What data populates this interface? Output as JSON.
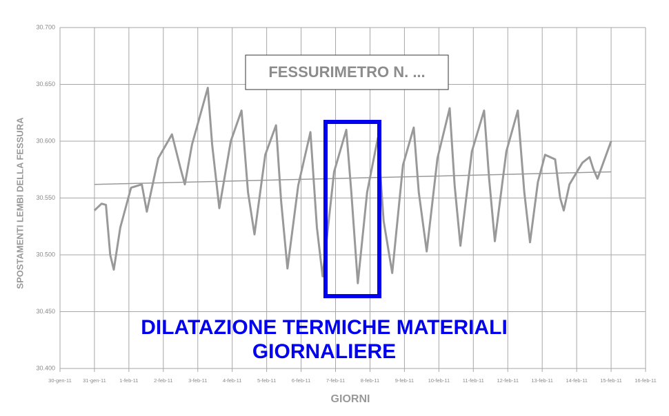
{
  "chart_data": {
    "type": "line",
    "title": "FESSURIMETRO N. ...",
    "annotation": [
      "DILATAZIONE TERMICHE MATERIALI",
      "GIORNALIERE"
    ],
    "y_label": "SPOSTAMENTI LEMBI DELLA FESSURA",
    "x_label": "GIORNI",
    "xlim": [
      "2011-01-30",
      "2011-02-16"
    ],
    "xticks": [
      {
        "value": "2011-01-30",
        "label": "30-gen-11"
      },
      {
        "value": "2011-01-31",
        "label": "31-gen-11"
      },
      {
        "value": "2011-02-01",
        "label": "1-feb-11"
      },
      {
        "value": "2011-02-02",
        "label": "2-feb-11"
      },
      {
        "value": "2011-02-03",
        "label": "3-feb-11"
      },
      {
        "value": "2011-02-04",
        "label": "4-feb-11"
      },
      {
        "value": "2011-02-05",
        "label": "5-feb-11"
      },
      {
        "value": "2011-02-06",
        "label": "6-feb-11"
      },
      {
        "value": "2011-02-07",
        "label": "7-feb-11"
      },
      {
        "value": "2011-02-08",
        "label": "8-feb-11"
      },
      {
        "value": "2011-02-09",
        "label": "9-feb-11"
      },
      {
        "value": "2011-02-10",
        "label": "10-feb-11"
      },
      {
        "value": "2011-02-11",
        "label": "11-feb-11"
      },
      {
        "value": "2011-02-12",
        "label": "12-feb-11"
      },
      {
        "value": "2011-02-13",
        "label": "13-feb-11"
      },
      {
        "value": "2011-02-14",
        "label": "14-feb-11"
      },
      {
        "value": "2011-02-15",
        "label": "15-feb-11"
      },
      {
        "value": "2011-02-16",
        "label": "16-feb-11"
      }
    ],
    "ylim": [
      30.4,
      30.7
    ],
    "yticks": [
      {
        "value": 30.4,
        "label": "30.400"
      },
      {
        "value": 30.45,
        "label": "30.450"
      },
      {
        "value": 30.5,
        "label": "30.500"
      },
      {
        "value": 30.55,
        "label": "30.550"
      },
      {
        "value": 30.6,
        "label": "30.600"
      },
      {
        "value": 30.65,
        "label": "30.650"
      },
      {
        "value": 30.7,
        "label": "30.700"
      }
    ],
    "grid": true,
    "series": [
      {
        "color": "#999999",
        "width": 3,
        "x": [
          "2011-01-31T00:00",
          "2011-01-31T05:00",
          "2011-01-31T08:00",
          "2011-01-31T11:00",
          "2011-01-31T13:30",
          "2011-01-31T18:00",
          "2011-02-01T01:30",
          "2011-02-01T09:00",
          "2011-02-01T12:30",
          "2011-02-01T20:30",
          "2011-02-02T06:00",
          "2011-02-02T12:00",
          "2011-02-02T15:00",
          "2011-02-02T20:00",
          "2011-02-03T07:00",
          "2011-02-03T10:00",
          "2011-02-03T15:00",
          "2011-02-03T23:00",
          "2011-02-04T06:30",
          "2011-02-04T11:00",
          "2011-02-04T15:30",
          "2011-02-04T23:00",
          "2011-02-05T06:30",
          "2011-02-05T10:00",
          "2011-02-05T14:30",
          "2011-02-05T22:00",
          "2011-02-06T06:30",
          "2011-02-06T11:00",
          "2011-02-06T15:00",
          "2011-02-06T23:00",
          "2011-02-07T07:30",
          "2011-02-07T11:00",
          "2011-02-07T15:30",
          "2011-02-07T22:00",
          "2011-02-08T05:30",
          "2011-02-08T09:30",
          "2011-02-08T15:30",
          "2011-02-08T23:00",
          "2011-02-09T06:30",
          "2011-02-09T10:00",
          "2011-02-09T15:30",
          "2011-02-09T23:00",
          "2011-02-10T07:30",
          "2011-02-10T11:00",
          "2011-02-10T15:00",
          "2011-02-10T23:00",
          "2011-02-11T07:30",
          "2011-02-11T11:00",
          "2011-02-11T15:00",
          "2011-02-11T23:00",
          "2011-02-12T07:00",
          "2011-02-12T11:30",
          "2011-02-12T15:30",
          "2011-02-12T21:00",
          "2011-02-13T02:00",
          "2011-02-13T09:00",
          "2011-02-13T12:30",
          "2011-02-13T15:00",
          "2011-02-13T19:00",
          "2011-02-14T04:00",
          "2011-02-14T09:00",
          "2011-02-14T11:30",
          "2011-02-14T14:30",
          "2011-02-15T00:00"
        ],
        "values": [
          30.539,
          30.545,
          30.544,
          30.5,
          30.487,
          30.524,
          30.559,
          30.562,
          30.538,
          30.585,
          30.606,
          30.576,
          30.562,
          30.597,
          30.647,
          30.597,
          30.541,
          30.6,
          30.627,
          30.555,
          30.518,
          30.588,
          30.614,
          30.548,
          30.488,
          30.561,
          30.608,
          30.524,
          30.481,
          30.573,
          30.61,
          30.555,
          30.475,
          30.555,
          30.603,
          30.53,
          30.484,
          30.579,
          30.612,
          30.555,
          30.503,
          30.585,
          30.629,
          30.561,
          30.508,
          30.591,
          30.627,
          30.567,
          30.512,
          30.591,
          30.627,
          30.555,
          30.511,
          30.564,
          30.588,
          30.584,
          30.55,
          30.539,
          30.562,
          30.581,
          30.586,
          30.576,
          30.567,
          30.6
        ]
      },
      {
        "color": "#999999",
        "width": 1.5,
        "x": [
          "2011-01-31T00:00",
          "2011-02-15T00:00"
        ],
        "values": [
          30.562,
          30.573
        ]
      }
    ]
  }
}
